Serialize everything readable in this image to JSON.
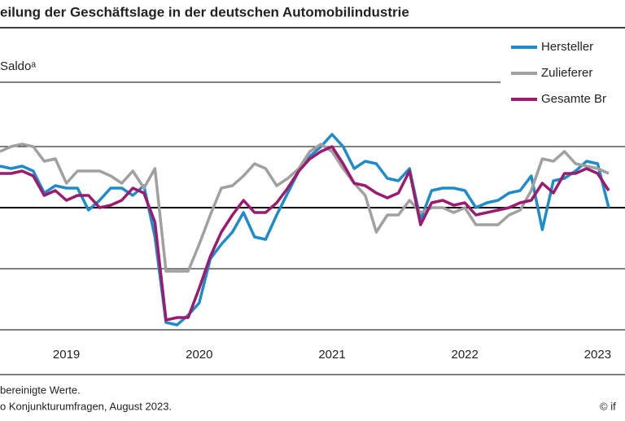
{
  "chart_data": {
    "type": "line",
    "title": "eilung der Geschäftslage in der deutschen Automobilindustrie",
    "subtitle": "Saldoᵃ",
    "categories": [
      null,
      null,
      null,
      null,
      null,
      null,
      "2019",
      null,
      null,
      null,
      null,
      null,
      null,
      null,
      null,
      null,
      null,
      null,
      "2020",
      null,
      null,
      null,
      null,
      null,
      null,
      null,
      null,
      null,
      null,
      null,
      "2021",
      null,
      null,
      null,
      null,
      null,
      null,
      null,
      null,
      null,
      null,
      null,
      "2022",
      null,
      null,
      null,
      null,
      null,
      null,
      null,
      null,
      null,
      null,
      null,
      "2023",
      null
    ],
    "series": [
      {
        "name": "Hersteller",
        "color": "#1f8bc9",
        "values": [
          17,
          16,
          17,
          15,
          6,
          9,
          8,
          8,
          -1,
          3,
          8,
          8,
          5,
          9,
          -12,
          -47,
          -48,
          -44,
          -39,
          -21,
          -15,
          -10,
          -2,
          -12,
          -13,
          -3,
          6,
          15,
          21,
          25,
          30,
          25,
          16,
          19,
          18,
          12,
          11,
          16,
          -5,
          7,
          8,
          8,
          7,
          0,
          2,
          3,
          6,
          7,
          13,
          -9,
          11,
          12,
          15,
          19,
          18,
          0
        ]
      },
      {
        "name": "Zulieferer",
        "color": "#a0a0a0",
        "values": [
          23,
          25,
          26,
          25,
          19,
          20,
          10,
          15,
          15,
          15,
          13,
          10,
          15,
          8,
          16,
          -26,
          -26,
          -26,
          -15,
          -3,
          8,
          9,
          13,
          18,
          16,
          9,
          12,
          16,
          23,
          26,
          23,
          16,
          10,
          5,
          -10,
          -3,
          -3,
          3,
          -2,
          0,
          0,
          -2,
          0,
          -7,
          -7,
          -7,
          -3,
          -1,
          7,
          20,
          19,
          23,
          18,
          17,
          16,
          14
        ]
      },
      {
        "name": "Gesamte Br",
        "color": "#9b1b6e",
        "values": [
          14,
          14,
          15,
          13,
          5,
          7,
          3,
          5,
          5,
          0,
          1,
          3,
          8,
          6,
          -6,
          -46,
          -45,
          -45,
          -33,
          -20,
          -10,
          -3,
          3,
          -2,
          -2,
          2,
          8,
          15,
          20,
          23,
          25,
          18,
          10,
          9,
          6,
          4,
          6,
          15,
          -7,
          2,
          3,
          1,
          2,
          -3,
          -2,
          -1,
          0,
          2,
          3,
          10,
          6,
          14,
          14,
          16,
          14,
          7
        ]
      }
    ],
    "ylim": [
      -50,
      50
    ],
    "yticks": [
      -50,
      -25,
      0,
      25
    ],
    "grid": true,
    "legend": "top-right",
    "footnotes": [
      "bereinigte Werte.",
      "o Konjunkturumfragen, August 2023."
    ],
    "source": "© if"
  }
}
